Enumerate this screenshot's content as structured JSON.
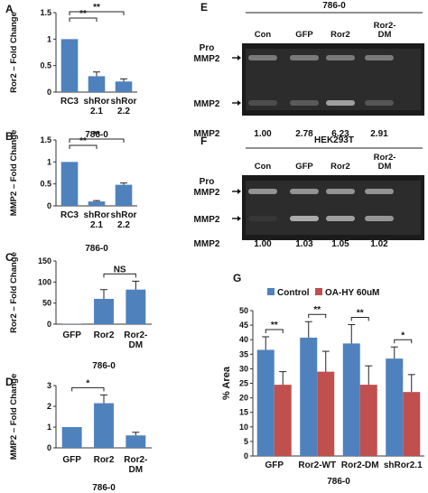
{
  "colors": {
    "bar": "#4f81bd",
    "bar2": "#c0504d",
    "axis": "#333333",
    "gel_bg": "#1b1b1b"
  },
  "chart_data": [
    {
      "id": "A",
      "type": "bar",
      "panel_letter": "A",
      "categories": [
        "RC3",
        "shRor 2.1",
        "shRor 2.2"
      ],
      "values": [
        1.0,
        0.3,
        0.2
      ],
      "errors": [
        0,
        0.08,
        0.05
      ],
      "ylabel": "Ror2 – Fold Change",
      "ylim": [
        0,
        1.5
      ],
      "yticks": [
        0,
        0.5,
        1,
        1.5
      ],
      "xlabel": "786-0",
      "significance": [
        {
          "from": 0,
          "to": 1,
          "label": "**"
        },
        {
          "from": 0,
          "to": 2,
          "label": "**"
        }
      ]
    },
    {
      "id": "B",
      "type": "bar",
      "panel_letter": "B",
      "categories": [
        "RC3",
        "shRor 2.1",
        "shRor 2.2"
      ],
      "values": [
        1.0,
        0.1,
        0.48
      ],
      "errors": [
        0,
        0.02,
        0.04
      ],
      "ylabel": "MMP2 – Fold Change",
      "ylim": [
        0,
        1.5
      ],
      "yticks": [
        0,
        0.5,
        1,
        1.5
      ],
      "xlabel": "786-0",
      "significance": [
        {
          "from": 0,
          "to": 1,
          "label": "**"
        },
        {
          "from": 0,
          "to": 2,
          "label": "**"
        }
      ]
    },
    {
      "id": "C",
      "type": "bar",
      "panel_letter": "C",
      "categories": [
        "GFP",
        "Ror2",
        "Ror2- DM"
      ],
      "values": [
        1,
        60,
        82
      ],
      "errors": [
        0,
        22,
        20
      ],
      "ylabel": "Ror2 – Fold Change",
      "ylim": [
        0,
        150
      ],
      "yticks": [
        0,
        50,
        100,
        150
      ],
      "xlabel": "786-0",
      "significance": [
        {
          "from": 1,
          "to": 2,
          "label": "NS"
        }
      ]
    },
    {
      "id": "D",
      "type": "bar",
      "panel_letter": "D",
      "categories": [
        "GFP",
        "Ror2",
        "Ror2- DM"
      ],
      "values": [
        1.0,
        2.15,
        0.6
      ],
      "errors": [
        0,
        0.4,
        0.15
      ],
      "ylabel": "MMP2 – Fold Change",
      "ylim": [
        0,
        3
      ],
      "yticks": [
        0,
        1,
        2,
        3
      ],
      "xlabel": "786-0",
      "significance": [
        {
          "from": 0,
          "to": 1,
          "label": "*"
        }
      ]
    },
    {
      "id": "G",
      "type": "bar",
      "panel_letter": "G",
      "categories": [
        "GFP",
        "Ror2-WT",
        "Ror2-DM",
        "shRor2.1"
      ],
      "series": [
        {
          "name": "Control",
          "values": [
            36.5,
            40.7,
            38.7,
            33.5
          ],
          "errors": [
            4.5,
            5.5,
            6.5,
            4.0
          ]
        },
        {
          "name": "OA-HY 60uM",
          "values": [
            24.5,
            29.0,
            24.5,
            22.0
          ],
          "errors": [
            4.5,
            7.0,
            6.5,
            6.0
          ]
        }
      ],
      "ylabel": "% Area",
      "ylim": [
        0,
        50
      ],
      "yticks": [
        0,
        5,
        10,
        15,
        20,
        25,
        30,
        35,
        40,
        45,
        50
      ],
      "xlabel": "786-0",
      "legend": "top",
      "significance": [
        {
          "group": 0,
          "label": "**"
        },
        {
          "group": 1,
          "label": "**"
        },
        {
          "group": 2,
          "label": "**"
        },
        {
          "group": 3,
          "label": "*"
        }
      ]
    }
  ],
  "gels": [
    {
      "id": "E",
      "panel_letter": "E",
      "cell_line": "786-0",
      "lanes": [
        "Con",
        "GFP",
        "Ror2",
        "Ror2- DM"
      ],
      "band_labels": [
        "Pro MMP2",
        "MMP2"
      ],
      "quant_label": "MMP2",
      "quant": [
        "1.00",
        "2.78",
        "6.23",
        "2.91"
      ]
    },
    {
      "id": "F",
      "panel_letter": "F",
      "cell_line": "HEK293T",
      "lanes": [
        "Con",
        "GFP",
        "Ror2",
        "Ror2- DM"
      ],
      "band_labels": [
        "Pro MMP2",
        "MMP2"
      ],
      "quant_label": "MMP2",
      "quant": [
        "1.00",
        "1.03",
        "1.05",
        "1.02"
      ]
    }
  ]
}
